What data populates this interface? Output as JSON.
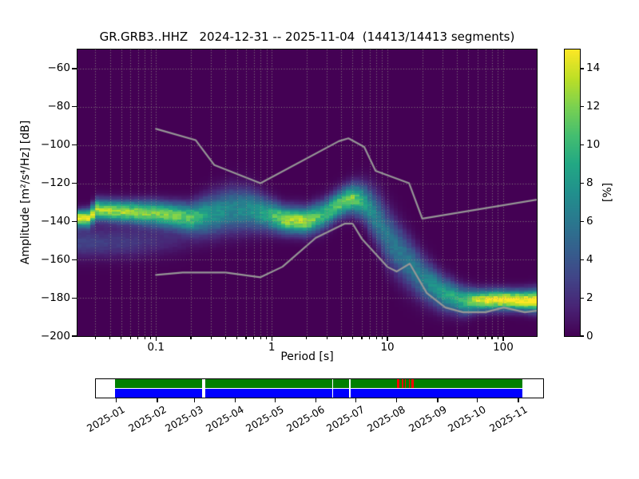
{
  "figure": {
    "title": "GR.GRB3..HHZ   2024-12-31 -- 2025-11-04  (14413/14413 segments)",
    "station_id": "GR.GRB3..HHZ",
    "date_range": "2024-12-31 -- 2025-11-04",
    "segments": "14413/14413 segments"
  },
  "chart_data": {
    "type": "heatmap",
    "title": "GR.GRB3..HHZ   2024-12-31 -- 2025-11-04  (14413/14413 segments)",
    "xlabel": "Period [s]",
    "ylabel": "Amplitude [m²/s⁴/Hz] [dB]",
    "xscale": "log",
    "xlim": [
      0.021,
      195
    ],
    "ylim": [
      -200,
      -50
    ],
    "grid": true,
    "colormap": "viridis",
    "x_ticks": [
      {
        "value": 0.1,
        "label": "0.1"
      },
      {
        "value": 1,
        "label": "1"
      },
      {
        "value": 10,
        "label": "10"
      },
      {
        "value": 100,
        "label": "100"
      }
    ],
    "y_ticks": [
      {
        "value": -60,
        "label": "−60"
      },
      {
        "value": -80,
        "label": "−80"
      },
      {
        "value": -100,
        "label": "−100"
      },
      {
        "value": -120,
        "label": "−120"
      },
      {
        "value": -140,
        "label": "−140"
      },
      {
        "value": -160,
        "label": "−160"
      },
      {
        "value": -180,
        "label": "−180"
      },
      {
        "value": -200,
        "label": "−200"
      }
    ],
    "colorbar": {
      "label": "[%]",
      "vmin": 0,
      "vmax": 15,
      "ticks": [
        {
          "value": 0,
          "label": "0"
        },
        {
          "value": 2,
          "label": "2"
        },
        {
          "value": 4,
          "label": "4"
        },
        {
          "value": 6,
          "label": "6"
        },
        {
          "value": 8,
          "label": "8"
        },
        {
          "value": 10,
          "label": "10"
        },
        {
          "value": 12,
          "label": "12"
        },
        {
          "value": 14,
          "label": "14"
        }
      ]
    },
    "ppsd_density_band": [
      [
        0.021,
        -138.5,
        15.5,
        2.8
      ],
      [
        0.027,
        -138.2,
        14.5,
        3.0
      ],
      [
        0.03,
        -133.8,
        13.0,
        3.6
      ],
      [
        0.045,
        -134.6,
        13.0,
        3.6
      ],
      [
        0.07,
        -135.3,
        12.5,
        3.9
      ],
      [
        0.1,
        -135.8,
        12.0,
        4.2
      ],
      [
        0.14,
        -136.8,
        12.0,
        4.3
      ],
      [
        0.2,
        -138.0,
        11.0,
        4.8
      ],
      [
        0.3,
        -136.2,
        8.0,
        6.6
      ],
      [
        0.45,
        -133.9,
        7.0,
        7.6
      ],
      [
        0.65,
        -133.9,
        7.5,
        7.0
      ],
      [
        0.9,
        -136.2,
        9.0,
        5.6
      ],
      [
        1.3,
        -139.2,
        13.0,
        4.5
      ],
      [
        2.0,
        -139.8,
        13.5,
        4.5
      ],
      [
        2.8,
        -136.6,
        10.0,
        4.9
      ],
      [
        4.0,
        -130.2,
        11.5,
        4.7
      ],
      [
        5.0,
        -128.0,
        12.0,
        5.0
      ],
      [
        6.3,
        -129.8,
        9.0,
        6.2
      ],
      [
        8.0,
        -137.5,
        6.5,
        8.6
      ],
      [
        10.0,
        -148.0,
        6.0,
        9.6
      ],
      [
        14.0,
        -159.0,
        6.0,
        9.0
      ],
      [
        20.0,
        -169.5,
        6.5,
        7.6
      ],
      [
        30.0,
        -177.5,
        8.5,
        5.8
      ],
      [
        45.0,
        -181.6,
        10.0,
        4.6
      ],
      [
        60.0,
        -181.4,
        14.0,
        3.6
      ],
      [
        90.0,
        -181.0,
        15.5,
        3.4
      ],
      [
        140.0,
        -181.3,
        15.5,
        3.4
      ],
      [
        196.0,
        -181.5,
        15.5,
        3.8
      ]
    ],
    "ppsd_secondary_band": [
      [
        0.021,
        -151.0,
        3.0,
        5.5
      ],
      [
        0.06,
        -151.0,
        2.5,
        5.5
      ],
      [
        0.15,
        -149.0,
        1.5,
        5.5
      ],
      [
        0.4,
        -146.0,
        0.0,
        5.0
      ]
    ],
    "noise_models": {
      "color": "#969696",
      "nhnm": [
        [
          0.1,
          -91.5
        ],
        [
          0.22,
          -97.4
        ],
        [
          0.32,
          -110.5
        ],
        [
          0.8,
          -120.0
        ],
        [
          3.8,
          -98.0
        ],
        [
          4.6,
          -96.5
        ],
        [
          6.3,
          -101.0
        ],
        [
          7.9,
          -113.5
        ],
        [
          15.4,
          -120.0
        ],
        [
          20.0,
          -138.5
        ],
        [
          354.8,
          -126.0
        ]
      ],
      "nlnm": [
        [
          0.1,
          -168.0
        ],
        [
          0.17,
          -166.7
        ],
        [
          0.4,
          -166.7
        ],
        [
          0.8,
          -169.2
        ],
        [
          1.24,
          -163.7
        ],
        [
          2.4,
          -148.6
        ],
        [
          4.3,
          -141.1
        ],
        [
          5.0,
          -141.1
        ],
        [
          6.0,
          -149.0
        ],
        [
          10.0,
          -163.8
        ],
        [
          12.0,
          -166.2
        ],
        [
          15.6,
          -162.1
        ],
        [
          21.9,
          -177.5
        ],
        [
          31.6,
          -185.0
        ],
        [
          45.0,
          -187.5
        ],
        [
          70.0,
          -187.5
        ],
        [
          101.0,
          -185.0
        ],
        [
          154.0,
          -187.5
        ],
        [
          328.0,
          -185.0
        ]
      ]
    }
  },
  "availability": {
    "start": "2024-12-31",
    "end": "2025-11-04",
    "colors": {
      "present": "#008000",
      "processed": "#0000ff",
      "warning": "#ff0000"
    },
    "month_ticks": [
      {
        "label": "2025-01",
        "date": "2025-01-01"
      },
      {
        "label": "2025-02",
        "date": "2025-02-01"
      },
      {
        "label": "2025-03",
        "date": "2025-03-01"
      },
      {
        "label": "2025-04",
        "date": "2025-04-01"
      },
      {
        "label": "2025-05",
        "date": "2025-05-01"
      },
      {
        "label": "2025-06",
        "date": "2025-06-01"
      },
      {
        "label": "2025-07",
        "date": "2025-07-01"
      },
      {
        "label": "2025-08",
        "date": "2025-08-01"
      },
      {
        "label": "2025-09",
        "date": "2025-09-01"
      },
      {
        "label": "2025-10",
        "date": "2025-10-01"
      },
      {
        "label": "2025-11",
        "date": "2025-11-01"
      }
    ],
    "gaps": [
      {
        "start": "2025-03-07",
        "end": "2025-03-09"
      },
      {
        "start": "2025-06-13",
        "end": "2025-06-14"
      },
      {
        "start": "2025-06-26",
        "end": "2025-06-27"
      }
    ],
    "red_marks": [
      {
        "start": "2025-08-01",
        "end": "2025-08-03"
      },
      {
        "start": "2025-08-05",
        "end": "2025-08-06"
      },
      {
        "start": "2025-08-07",
        "end": "2025-08-08"
      },
      {
        "start": "2025-08-10",
        "end": "2025-08-11"
      },
      {
        "start": "2025-08-12",
        "end": "2025-08-14"
      }
    ]
  }
}
